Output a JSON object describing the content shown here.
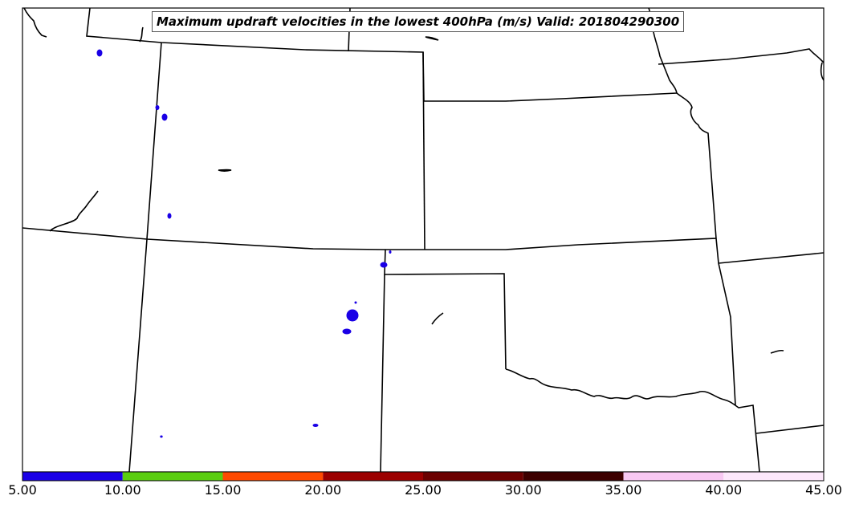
{
  "title": "Maximum updraft velocities in the lowest 400hPa (m/s) Valid: 201804290300",
  "colorbar": {
    "ticks": [
      "5.00",
      "10.00",
      "15.00",
      "20.00",
      "25.00",
      "30.00",
      "35.00",
      "40.00",
      "45.00"
    ],
    "colors": [
      "#1a00e6",
      "#5acd10",
      "#ff4a00",
      "#9b0000",
      "#6b0000",
      "#3d0000",
      "#f8c8f2",
      "#fde8fb"
    ]
  },
  "colors": {
    "border": "#000000",
    "updraft": "#1a00e6"
  }
}
